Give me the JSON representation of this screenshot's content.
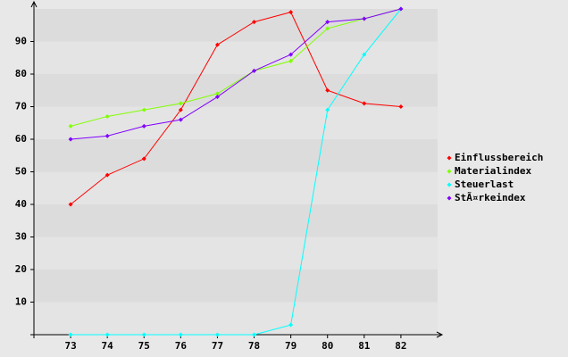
{
  "chart_data": {
    "type": "line",
    "categories": [
      "73",
      "74",
      "75",
      "76",
      "77",
      "78",
      "79",
      "80",
      "81",
      "82"
    ],
    "series": [
      {
        "name": "Einflussbereich",
        "color": "#ff0000",
        "values": [
          40,
          49,
          54,
          69,
          89,
          96,
          99,
          75,
          71,
          70
        ]
      },
      {
        "name": "Materialindex",
        "color": "#80ff00",
        "values": [
          64,
          67,
          69,
          71,
          74,
          81,
          84,
          94,
          97,
          100
        ]
      },
      {
        "name": "Steuerlast",
        "color": "#00ffff",
        "values": [
          0,
          0,
          0,
          0,
          0,
          0,
          3,
          69,
          86,
          100
        ]
      },
      {
        "name": "StÃ¤rkeindex",
        "color": "#8000ff",
        "values": [
          60,
          61,
          64,
          66,
          73,
          81,
          86,
          96,
          97,
          100
        ]
      }
    ],
    "ylim": [
      0,
      100
    ],
    "yticks": [
      10,
      20,
      30,
      40,
      50,
      60,
      70,
      80,
      90
    ],
    "grid": true,
    "legend": "right"
  }
}
